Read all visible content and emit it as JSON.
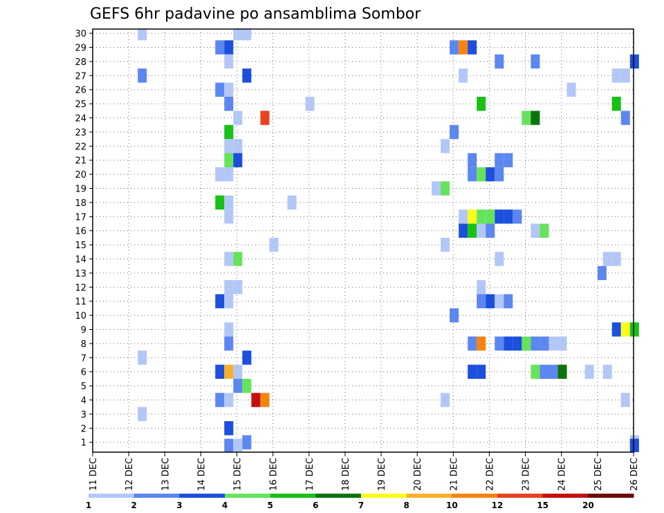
{
  "chart_data": {
    "type": "heatmap",
    "title": "GEFS 6hr padavine po ansamblima Sombor",
    "xlabel": "",
    "ylabel": "",
    "x_tick_labels": [
      "11 DEC",
      "12 DEC",
      "13 DEC",
      "14 DEC",
      "15 DEC",
      "16 DEC",
      "17 DEC",
      "18 DEC",
      "19 DEC",
      "20 DEC",
      "21 DEC",
      "22 DEC",
      "23 DEC",
      "24 DEC",
      "25 DEC",
      "26 DEC"
    ],
    "x_range_days": [
      0,
      15
    ],
    "y_tick_labels": [
      "1",
      "2",
      "3",
      "4",
      "5",
      "6",
      "7",
      "8",
      "9",
      "10",
      "11",
      "12",
      "13",
      "14",
      "15",
      "16",
      "17",
      "18",
      "19",
      "20",
      "21",
      "22",
      "23",
      "24",
      "25",
      "26",
      "27",
      "28",
      "29",
      "30"
    ],
    "y_range": [
      0.3,
      30.3
    ],
    "grid": true,
    "colorbar": {
      "colors": [
        "#b3c7f7",
        "#5c87f0",
        "#1c4fdc",
        "#66e35c",
        "#18c018",
        "#0c740c",
        "#fcfc1a",
        "#fbb02a",
        "#f7830f",
        "#e8421e",
        "#c41010",
        "#6b0c0c"
      ],
      "labels": [
        "1",
        "2",
        "3",
        "4",
        "5",
        "6",
        "7",
        "8",
        "10",
        "12",
        "15",
        "20"
      ]
    },
    "cells": [
      [
        1.25,
        30,
        0
      ],
      [
        3.9,
        30,
        0
      ],
      [
        4.15,
        30,
        0
      ],
      [
        3.4,
        29,
        1
      ],
      [
        3.65,
        29,
        2
      ],
      [
        9.9,
        29,
        1
      ],
      [
        10.15,
        29,
        8
      ],
      [
        10.4,
        29,
        2
      ],
      [
        3.65,
        28,
        0
      ],
      [
        11.15,
        28,
        1
      ],
      [
        12.15,
        28,
        1
      ],
      [
        14.9,
        28,
        2
      ],
      [
        1.25,
        27,
        1
      ],
      [
        4.15,
        27,
        2
      ],
      [
        10.15,
        27,
        0
      ],
      [
        14.4,
        27,
        0
      ],
      [
        14.65,
        27,
        0
      ],
      [
        3.4,
        26,
        1
      ],
      [
        3.65,
        26,
        0
      ],
      [
        13.15,
        26,
        0
      ],
      [
        3.65,
        25,
        1
      ],
      [
        5.9,
        25,
        0
      ],
      [
        10.65,
        25,
        4
      ],
      [
        14.4,
        25,
        4
      ],
      [
        3.9,
        24,
        0
      ],
      [
        4.65,
        24,
        9
      ],
      [
        11.9,
        24,
        3
      ],
      [
        12.15,
        24,
        5
      ],
      [
        14.65,
        24,
        1
      ],
      [
        3.65,
        23,
        4
      ],
      [
        9.9,
        23,
        1
      ],
      [
        3.65,
        22,
        0
      ],
      [
        3.9,
        22,
        0
      ],
      [
        9.65,
        22,
        0
      ],
      [
        3.65,
        21,
        3
      ],
      [
        3.9,
        21,
        2
      ],
      [
        10.4,
        21,
        1
      ],
      [
        11.15,
        21,
        1
      ],
      [
        11.4,
        21,
        1
      ],
      [
        3.4,
        20,
        0
      ],
      [
        3.65,
        20,
        0
      ],
      [
        10.4,
        20,
        1
      ],
      [
        10.65,
        20,
        3
      ],
      [
        10.9,
        20,
        2
      ],
      [
        11.15,
        20,
        1
      ],
      [
        9.4,
        19,
        0
      ],
      [
        9.65,
        19,
        3
      ],
      [
        3.4,
        18,
        4
      ],
      [
        3.65,
        18,
        0
      ],
      [
        5.4,
        18,
        0
      ],
      [
        3.65,
        17,
        0
      ],
      [
        10.15,
        17,
        0
      ],
      [
        10.4,
        17,
        6
      ],
      [
        10.65,
        17,
        3
      ],
      [
        10.9,
        17,
        3
      ],
      [
        11.15,
        17,
        2
      ],
      [
        11.4,
        17,
        2
      ],
      [
        11.65,
        17,
        1
      ],
      [
        10.15,
        16,
        2
      ],
      [
        10.4,
        16,
        4
      ],
      [
        10.65,
        16,
        0
      ],
      [
        10.9,
        16,
        1
      ],
      [
        12.15,
        16,
        0
      ],
      [
        12.4,
        16,
        3
      ],
      [
        4.9,
        15,
        0
      ],
      [
        9.65,
        15,
        0
      ],
      [
        3.65,
        14,
        0
      ],
      [
        3.9,
        14,
        3
      ],
      [
        11.15,
        14,
        0
      ],
      [
        14.15,
        14,
        0
      ],
      [
        14.4,
        14,
        0
      ],
      [
        14.0,
        13,
        1
      ],
      [
        3.65,
        12,
        0
      ],
      [
        3.9,
        12,
        0
      ],
      [
        10.65,
        12,
        0
      ],
      [
        3.4,
        11,
        2
      ],
      [
        3.65,
        11,
        0
      ],
      [
        10.65,
        11,
        1
      ],
      [
        10.9,
        11,
        2
      ],
      [
        11.15,
        11,
        0
      ],
      [
        11.4,
        11,
        1
      ],
      [
        9.9,
        10,
        1
      ],
      [
        3.65,
        9,
        0
      ],
      [
        14.4,
        9,
        2
      ],
      [
        14.65,
        9,
        6
      ],
      [
        14.9,
        9,
        4
      ],
      [
        3.65,
        8,
        1
      ],
      [
        10.4,
        8,
        1
      ],
      [
        10.65,
        8,
        8
      ],
      [
        11.15,
        8,
        1
      ],
      [
        11.4,
        8,
        2
      ],
      [
        11.65,
        8,
        2
      ],
      [
        11.9,
        8,
        3
      ],
      [
        12.15,
        8,
        1
      ],
      [
        12.4,
        8,
        1
      ],
      [
        12.65,
        8,
        0
      ],
      [
        12.9,
        8,
        0
      ],
      [
        1.25,
        7,
        0
      ],
      [
        4.15,
        7,
        2
      ],
      [
        3.4,
        6,
        2
      ],
      [
        3.65,
        6,
        7
      ],
      [
        3.9,
        6,
        0
      ],
      [
        10.4,
        6,
        2
      ],
      [
        10.65,
        6,
        2
      ],
      [
        12.15,
        6,
        3
      ],
      [
        12.4,
        6,
        1
      ],
      [
        12.65,
        6,
        1
      ],
      [
        12.9,
        6,
        5
      ],
      [
        13.65,
        6,
        0
      ],
      [
        14.15,
        6,
        0
      ],
      [
        3.9,
        5,
        1
      ],
      [
        4.15,
        5,
        3
      ],
      [
        3.4,
        4,
        1
      ],
      [
        3.65,
        4,
        0
      ],
      [
        4.4,
        4,
        10
      ],
      [
        4.65,
        4,
        8
      ],
      [
        9.65,
        4,
        0
      ],
      [
        14.65,
        4,
        0
      ],
      [
        1.25,
        3,
        0
      ],
      [
        3.65,
        2,
        2
      ],
      [
        4.15,
        1,
        1
      ],
      [
        14.9,
        1,
        0
      ],
      [
        3.65,
        0,
        1
      ],
      [
        3.9,
        0,
        0
      ],
      [
        14.9,
        0,
        2
      ]
    ]
  }
}
